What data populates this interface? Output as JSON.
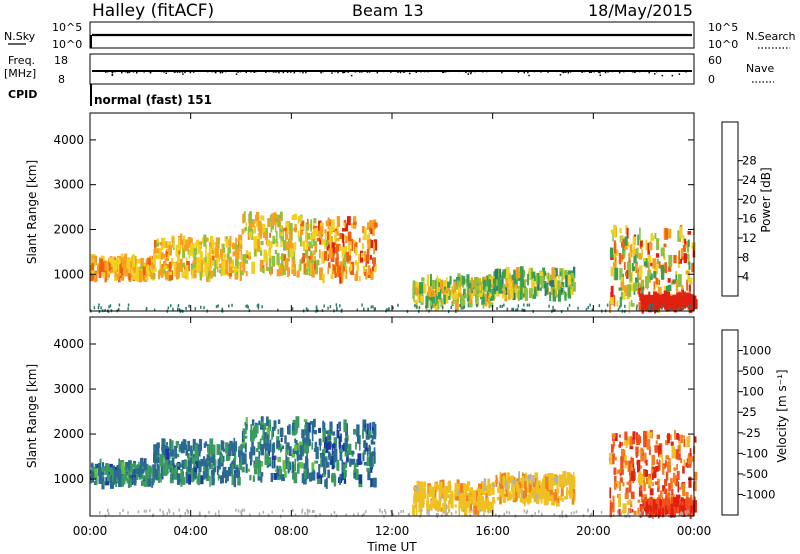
{
  "header": {
    "station": "Halley (fitACF)",
    "beam": "Beam 13",
    "date": "18/May/2015"
  },
  "top_panels": {
    "nsky_label": "N.Sky",
    "nsky_tick_hi": "10^5",
    "nsky_tick_lo": "10^0",
    "nsearch_label": "N.Search",
    "nsearch_tick_hi": "10^5",
    "nsearch_tick_lo": "10^0",
    "freq_label_1": "Freq.",
    "freq_label_2": "[MHz]",
    "freq_tick_hi": "18",
    "freq_tick_lo": "8",
    "nave_label": "Nave",
    "nave_tick_hi": "60",
    "nave_tick_lo": "0",
    "cpid_label": "CPID",
    "cpid_text": "normal (fast) 151"
  },
  "chart_data": [
    {
      "type": "heatmap",
      "name": "power",
      "ylabel": "Slant Range [km]",
      "xlabel": "Time UT",
      "x_ticks": [
        "00:00",
        "04:00",
        "08:00",
        "12:00",
        "16:00",
        "20:00",
        "00:00"
      ],
      "y_ticks": [
        1000,
        2000,
        3000,
        4000
      ],
      "ylim": [
        180,
        4600
      ],
      "xlim_hours": [
        0,
        24
      ],
      "colorbar": {
        "label": "Power [dB]",
        "ticks": [
          "4",
          "8",
          "12",
          "16",
          "20",
          "24",
          "28"
        ],
        "colors": [
          "#1010e0",
          "#2050b0",
          "#2a7a70",
          "#3aa050",
          "#90c040",
          "#f0d020",
          "#f5a020",
          "#f06010",
          "#e02010"
        ]
      },
      "echo_regions": [
        {
          "t0": 0.0,
          "t1": 2.5,
          "r0": 900,
          "r1": 1350,
          "level": [
            0.55,
            0.85
          ]
        },
        {
          "t0": 2.5,
          "t1": 6.0,
          "r0": 950,
          "r1": 1800,
          "level": [
            0.5,
            0.8
          ]
        },
        {
          "t0": 6.0,
          "t1": 9.0,
          "r0": 1000,
          "r1": 2300,
          "level": [
            0.45,
            0.8
          ]
        },
        {
          "t0": 9.0,
          "t1": 11.3,
          "r0": 900,
          "r1": 2200,
          "level": [
            0.55,
            0.95
          ]
        },
        {
          "t0": 12.8,
          "t1": 16.0,
          "r0": 300,
          "r1": 900,
          "level": [
            0.35,
            0.75
          ]
        },
        {
          "t0": 16.0,
          "t1": 19.2,
          "r0": 500,
          "r1": 1050,
          "level": [
            0.3,
            0.7
          ]
        },
        {
          "t0": 20.6,
          "t1": 24.0,
          "r0": 250,
          "r1": 2000,
          "level": [
            0.35,
            0.95
          ]
        },
        {
          "t0": 21.8,
          "t1": 24.0,
          "r0": 250,
          "r1": 500,
          "level": [
            0.95,
            1.0
          ]
        }
      ]
    },
    {
      "type": "heatmap",
      "name": "velocity",
      "ylabel": "Slant Range [km]",
      "xlabel": "Time UT",
      "x_ticks": [
        "00:00",
        "04:00",
        "08:00",
        "12:00",
        "16:00",
        "20:00",
        "00:00"
      ],
      "y_ticks": [
        1000,
        2000,
        3000,
        4000
      ],
      "ylim": [
        180,
        4600
      ],
      "xlim_hours": [
        0,
        24
      ],
      "colorbar": {
        "label": "Velocity [m s⁻¹]",
        "ticks": [
          "1000",
          "500",
          "100",
          "25",
          "-25",
          "-100",
          "-500",
          "-1000"
        ],
        "colors": [
          "#1a3aa0",
          "#2a6a90",
          "#3a9a60",
          "#60c040",
          "#b0b0b0",
          "#f0c020",
          "#f08020",
          "#f05020",
          "#e02010"
        ]
      },
      "echo_regions": [
        {
          "t0": 0.0,
          "t1": 2.5,
          "r0": 900,
          "r1": 1350,
          "level": [
            0.1,
            0.35
          ]
        },
        {
          "t0": 2.5,
          "t1": 6.0,
          "r0": 950,
          "r1": 1800,
          "level": [
            0.1,
            0.3
          ]
        },
        {
          "t0": 6.0,
          "t1": 9.0,
          "r0": 1000,
          "r1": 2300,
          "level": [
            0.1,
            0.35
          ]
        },
        {
          "t0": 9.0,
          "t1": 11.3,
          "r0": 900,
          "r1": 2200,
          "level": [
            0.05,
            0.3
          ]
        },
        {
          "t0": 12.8,
          "t1": 16.0,
          "r0": 300,
          "r1": 900,
          "level": [
            0.55,
            0.68
          ]
        },
        {
          "t0": 16.0,
          "t1": 19.2,
          "r0": 500,
          "r1": 1050,
          "level": [
            0.55,
            0.7
          ]
        },
        {
          "t0": 20.6,
          "t1": 24.0,
          "r0": 250,
          "r1": 2000,
          "level": [
            0.6,
            0.95
          ]
        },
        {
          "t0": 21.8,
          "t1": 24.0,
          "r0": 250,
          "r1": 500,
          "level": [
            0.8,
            1.0
          ]
        }
      ]
    }
  ]
}
